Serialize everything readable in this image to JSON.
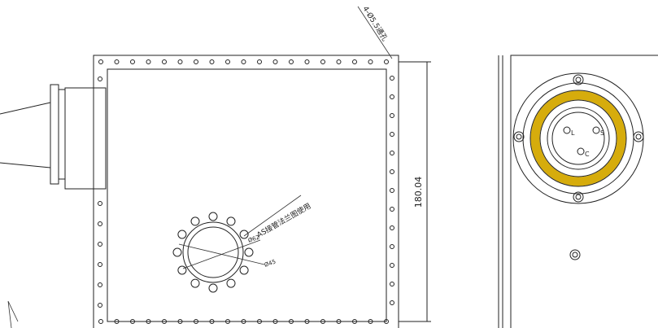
{
  "annotations": {
    "holes_note": "4-Ø5.5通孔",
    "dimension": "180.04",
    "flange_note": "AS接管法兰图使用",
    "dia_outer": "Ø62",
    "dia_inner": "Ø45"
  },
  "connector_pins": [
    "L",
    "S",
    "C"
  ]
}
